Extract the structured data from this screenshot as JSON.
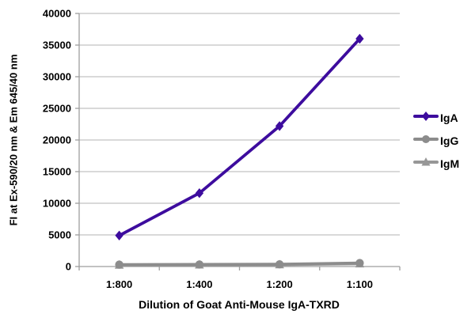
{
  "chart_data": {
    "type": "line",
    "title": "",
    "xlabel": "Dilution of Goat Anti-Mouse IgA-TXRD",
    "ylabel": "FI at Ex-590/20 nm & Em 645/40 nm",
    "categories": [
      "1:800",
      "1:400",
      "1:200",
      "1:100"
    ],
    "ylim": [
      0,
      40000
    ],
    "ytick_step": 5000,
    "ytick_labels": [
      "0",
      "5000",
      "10000",
      "15000",
      "20000",
      "25000",
      "30000",
      "35000",
      "40000"
    ],
    "grid": "horizontal",
    "legend_position": "right",
    "series": [
      {
        "name": "IgA",
        "marker": "diamond",
        "color": "#3d0c9e",
        "values": [
          4900,
          11600,
          22200,
          36000
        ]
      },
      {
        "name": "IgG",
        "marker": "circle",
        "color": "#8c8c8c",
        "values": [
          300,
          320,
          350,
          550
        ]
      },
      {
        "name": "IgM",
        "marker": "triangle",
        "color": "#979797",
        "values": [
          250,
          270,
          300,
          450
        ]
      }
    ]
  },
  "colors": {
    "background": "#ffffff",
    "gridline": "#b3b3b3",
    "axis": "#9e9e9e",
    "text": "#000000"
  }
}
